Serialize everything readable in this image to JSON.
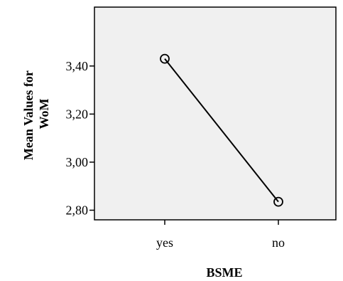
{
  "chart_data": {
    "type": "line",
    "title": "",
    "xlabel": "BSME",
    "ylabel_lines": [
      "Mean Values for",
      "WoM"
    ],
    "categories": [
      "yes",
      "no"
    ],
    "series": [
      {
        "values": [
          3.43,
          2.835
        ]
      }
    ],
    "ylim": [
      2.76,
      3.645
    ],
    "yticks": [
      2.8,
      3.0,
      3.2,
      3.4
    ],
    "ytick_labels": [
      "2,80",
      "3,00",
      "3,20",
      "3,40"
    ],
    "grid": false,
    "marker": "hollow-circle",
    "plot_background": "#f0f0f0",
    "line_color": "#000000"
  }
}
